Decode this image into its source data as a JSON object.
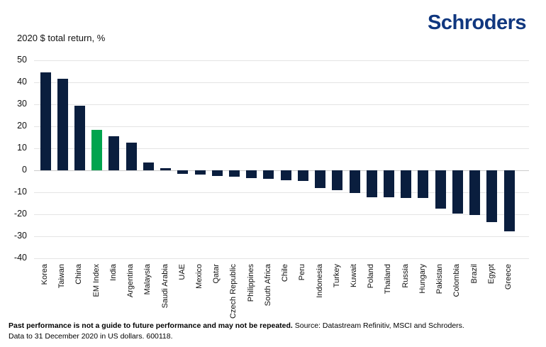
{
  "header": {
    "logo_text": "Schroders",
    "logo_color": "#10377f"
  },
  "chart_data": {
    "type": "bar",
    "title": "2020 $ total return, %",
    "categories": [
      "Korea",
      "Taiwan",
      "China",
      "EM Index",
      "India",
      "Argentina",
      "Malaysia",
      "Saudi Arabia",
      "UAE",
      "Mexico",
      "Qatar",
      "Czech Republic",
      "Philippines",
      "South Africa",
      "Chile",
      "Peru",
      "Indonesia",
      "Turkey",
      "Kuwait",
      "Poland",
      "Thailand",
      "Russia",
      "Hungary",
      "Pakistan",
      "Colombia",
      "Brazil",
      "Egypt",
      "Greece"
    ],
    "values": [
      44.6,
      41.5,
      29.5,
      18.5,
      15.5,
      12.5,
      3.5,
      1.0,
      -1.5,
      -2.0,
      -2.7,
      -2.9,
      -3.4,
      -4.0,
      -4.6,
      -4.9,
      -8.0,
      -8.9,
      -10.4,
      -12.1,
      -12.4,
      -12.5,
      -12.7,
      -17.4,
      -19.8,
      -20.2,
      -23.4,
      -27.7
    ],
    "highlight_category": "EM Index",
    "bar_color": "#0a1e3e",
    "highlight_color": "#00a44e",
    "y_ticks": [
      50,
      40,
      30,
      20,
      10,
      0,
      -10,
      -20,
      -30,
      -40
    ],
    "ylim": [
      -40,
      50
    ],
    "xlabel": "",
    "ylabel": "2020 $ total return, %",
    "grid": "horizontal",
    "legend": "none"
  },
  "footer": {
    "bold_text": "Past performance is not a guide to future performance and may not be repeated.",
    "source_text": "Source: Datastream Refinitiv, MSCI and Schroders.",
    "line2": "Data to 31 December 2020 in US dollars. 600118."
  }
}
